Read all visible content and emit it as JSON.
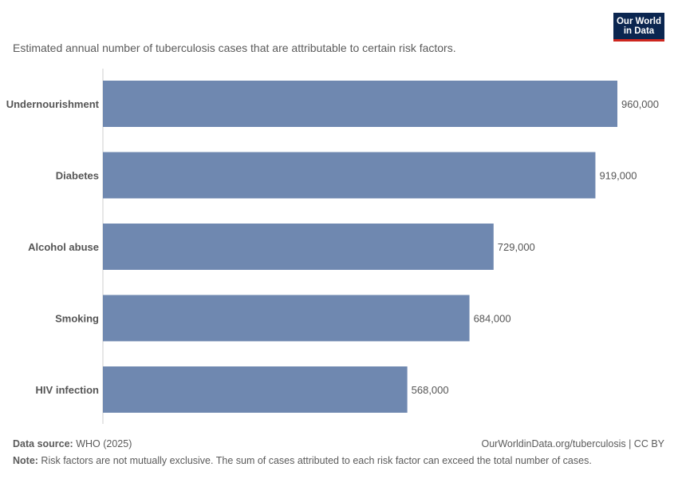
{
  "logo": {
    "line1": "Our World",
    "line2": "in Data"
  },
  "subtitle": "Estimated annual number of tuberculosis cases that are attributable to certain risk factors.",
  "footer": {
    "source_label": "Data source:",
    "source_value": " WHO (2025)",
    "url": "OurWorldinData.org/tuberculosis | CC BY",
    "note_label": "Note:",
    "note_value": " Risk factors are not mutually exclusive. The sum of cases attributed to each risk factor can exceed the total number of cases."
  },
  "chart_data": {
    "type": "bar",
    "orientation": "horizontal",
    "title": "",
    "xlabel": "",
    "ylabel": "",
    "xlim": [
      0,
      960000
    ],
    "grid": false,
    "bar_color": "#6f88b0",
    "categories": [
      "Undernourishment",
      "Diabetes",
      "Alcohol abuse",
      "Smoking",
      "HIV infection"
    ],
    "values": [
      960000,
      919000,
      729000,
      684000,
      568000
    ],
    "value_labels": [
      "960,000",
      "919,000",
      "729,000",
      "684,000",
      "568,000"
    ]
  }
}
